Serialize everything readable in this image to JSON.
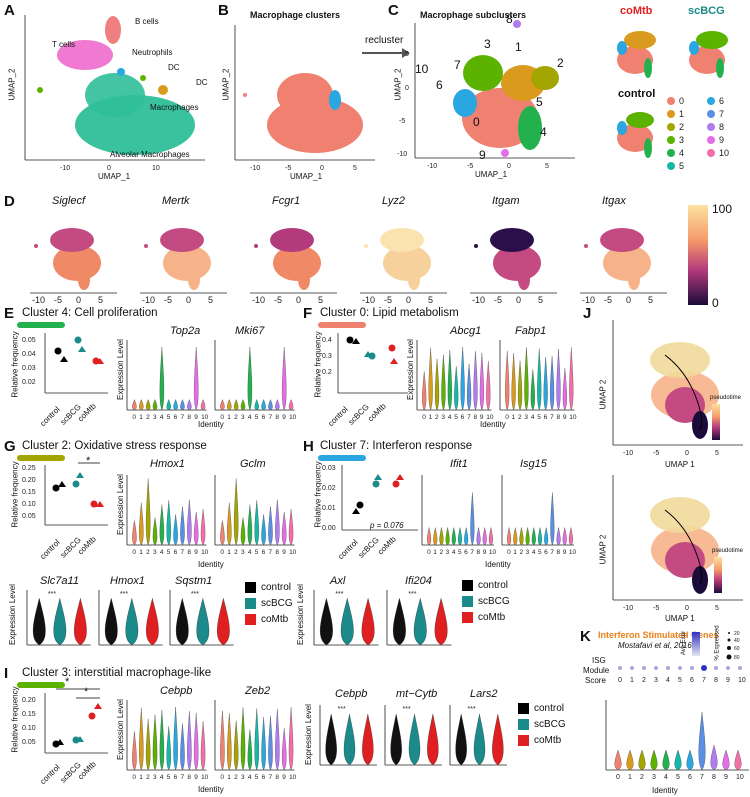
{
  "panels": {
    "A": {
      "letter": "A",
      "ylabel": "UMAP_2",
      "xlabel": "UMAP_1",
      "xticks": [
        "-10",
        "0",
        "10"
      ],
      "labels": {
        "bcells": "B cells",
        "tcells": "T cells",
        "neut": "Neutrophils",
        "dc1": "DC",
        "dc2": "DC",
        "macro": "Macrophages",
        "alv": "Alveolar Macrophages"
      }
    },
    "B": {
      "letter": "B",
      "title": "Macrophage clusters",
      "ylabel": "UMAP_2",
      "xlabel": "UMAP_1",
      "xticks": [
        "-10",
        "-5",
        "0",
        "5"
      ],
      "recluster": "recluster"
    },
    "C": {
      "letter": "C",
      "title": "Macrophage subclusters",
      "ylabel": "UMAP_2",
      "xlabel": "UMAP_1",
      "xticks": [
        "-10",
        "-5",
        "0",
        "5"
      ],
      "yticks": [
        "5",
        "0",
        "-5",
        "-10"
      ],
      "cluster_labels": [
        "0",
        "1",
        "2",
        "3",
        "4",
        "5",
        "6",
        "7",
        "8",
        "9",
        "10"
      ],
      "small": {
        "comtb": "coMtb",
        "scbcg": "scBCG",
        "control": "control"
      },
      "legend": [
        {
          "label": "0",
          "color": "#f08070"
        },
        {
          "label": "1",
          "color": "#d99a1d"
        },
        {
          "label": "2",
          "color": "#a3a500"
        },
        {
          "label": "3",
          "color": "#5bb300"
        },
        {
          "label": "4",
          "color": "#22b14c"
        },
        {
          "label": "5",
          "color": "#13b8a6"
        },
        {
          "label": "6",
          "color": "#2aa7e0"
        },
        {
          "label": "7",
          "color": "#5a8fe6"
        },
        {
          "label": "8",
          "color": "#b07cf0"
        },
        {
          "label": "9",
          "color": "#e56ee6"
        },
        {
          "label": "10",
          "color": "#f56ea8"
        }
      ]
    },
    "D": {
      "letter": "D",
      "genes": [
        "Siglecf",
        "Mertk",
        "Fcgr1",
        "Lyz2",
        "Itgam",
        "Itgax"
      ],
      "xticks": [
        "-10",
        "-5",
        "0",
        "5"
      ],
      "scale_max": "100",
      "scale_min": "0"
    },
    "E": {
      "letter": "E",
      "title": "Cluster 4: Cell proliferation",
      "ylabel": "Relative frequency",
      "yticks": [
        "0.05",
        "0.04",
        "0.03",
        "0.02"
      ],
      "groups": [
        "control",
        "scBCG",
        "coMtb"
      ],
      "genes": [
        "Top2a",
        "Mki67"
      ]
    },
    "F": {
      "letter": "F",
      "title": "Cluster 0: Lipid metabolism",
      "ylabel": "Relative frequency",
      "yticks": [
        "0.4",
        "0.3",
        "0.2"
      ],
      "groups": [
        "control",
        "scBCG",
        "coMtb"
      ],
      "genes": [
        "Abcg1",
        "Fabp1"
      ]
    },
    "G": {
      "letter": "G",
      "title": "Cluster 2: Oxidative stress response",
      "ylabel": "Relative frequency",
      "yticks": [
        "0.25",
        "0.20",
        "0.15",
        "0.10",
        "0.05"
      ],
      "groups": [
        "control",
        "scBCG",
        "coMtb"
      ],
      "genes": [
        "Hmox1",
        "Gclm"
      ],
      "sig": "*",
      "bottom_genes": [
        "Slc7a11",
        "Hmox1",
        "Sqstm1"
      ],
      "stars": "***"
    },
    "H": {
      "letter": "H",
      "title": "Cluster 7: Interferon response",
      "ylabel": "Relative frequency",
      "yticks": [
        "0.03",
        "0.02",
        "0.01",
        "0.00"
      ],
      "groups": [
        "control",
        "scBCG",
        "coMtb"
      ],
      "genes": [
        "Ifit1",
        "Isg15"
      ],
      "pval": "p = 0.076",
      "bottom_genes": [
        "Axl",
        "Ifi204"
      ]
    },
    "I": {
      "letter": "I",
      "title": "Cluster 3: interstitial macrophage-like",
      "ylabel": "Relative frequency",
      "yticks": [
        "0.20",
        "0.15",
        "0.10",
        "0.05"
      ],
      "groups": [
        "control",
        "scBCG",
        "coMtb"
      ],
      "genes": [
        "Cebpb",
        "Zeb2"
      ],
      "right_genes": [
        "Cebpb",
        "mt−Cytb",
        "Lars2"
      ]
    },
    "J": {
      "letter": "J",
      "xlabel": "UMAP 1",
      "ylabel": "UMAP 2",
      "legend_title": "pseudotime",
      "xticks": [
        "-10",
        "-5",
        "0",
        "5"
      ]
    },
    "K": {
      "letter": "K",
      "title": "Interferon Stimulated Genes",
      "subtitle": "Mostafavi et al, 2016",
      "row_label_1": "ISG",
      "row_label_2": "Module",
      "row_label_3": "Score",
      "avg_expr": "Ave Expr",
      "pct_expr": "% Expressed",
      "pct_vals": [
        "20",
        "40",
        "60",
        "80"
      ],
      "xlabel": "Identity"
    }
  },
  "common": {
    "expression_level": "Expression Level",
    "identity": "Identity",
    "identities": [
      "0",
      "1",
      "2",
      "3",
      "4",
      "5",
      "6",
      "7",
      "8",
      "9",
      "10"
    ],
    "legend_groups": [
      {
        "label": "control",
        "color": "#000000"
      },
      {
        "label": "scBCG",
        "color": "#1a8a8a"
      },
      {
        "label": "coMtb",
        "color": "#e02020"
      }
    ],
    "colors": {
      "green_bar": "#22b14c",
      "salmon_bar": "#f08070",
      "olive_bar": "#a3a500",
      "blue_bar": "#2aa7e0",
      "lime_bar": "#5bb300",
      "comtb_red": "#e02020",
      "scbcg_teal": "#1a8a8a"
    }
  }
}
